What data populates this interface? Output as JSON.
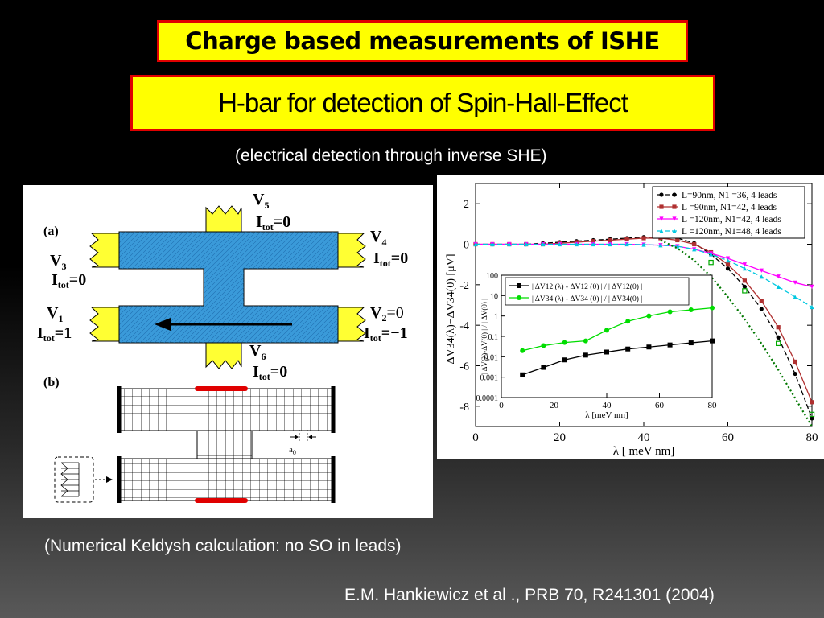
{
  "header": {
    "title": "Charge based measurements of ISHE",
    "subtitle": "H-bar for detection of Spin-Hall-Effect"
  },
  "caption_top": "(electrical detection through inverse SHE)",
  "caption_bottom": "(Numerical Keldysh calculation: no SO in leads)",
  "citation": "E.M. Hankiewicz et al ., PRB 70, R241301 (2004)",
  "figure_a": {
    "label": "(a)",
    "leads": {
      "v5": {
        "v": "V",
        "sub": "5",
        "i": "I",
        "isub": "tot",
        "val": "=0"
      },
      "v4": {
        "v": "V",
        "sub": "4",
        "i": "I",
        "isub": "tot",
        "val": "=0"
      },
      "v3": {
        "v": "V",
        "sub": "3",
        "i": "I",
        "isub": "tot",
        "val": "=0"
      },
      "v1": {
        "v": "V",
        "sub": "1",
        "i": "I",
        "isub": "tot",
        "val": "=1"
      },
      "v2": {
        "v": "V",
        "sub": "2",
        "vval": "=0",
        "i": "I",
        "isub": "tot",
        "val": "=−1"
      },
      "v6": {
        "v": "V",
        "sub": "6",
        "i": "I",
        "isub": "tot",
        "val": "=0"
      }
    }
  },
  "figure_b": {
    "label": "(b)",
    "spacing_label": "a",
    "spacing_sub": "0"
  },
  "colors": {
    "title_bg": "#ffff00",
    "title_border": "#e00000",
    "device_blue": "#3a9ad9",
    "lead_yellow": "#ffff33"
  },
  "chart_data": [
    {
      "type": "line",
      "xlabel": "λ [ meV nm]",
      "ylabel": "ΔV34(λ)−ΔV34(0)  [μV]",
      "xlim": [
        0,
        80
      ],
      "ylim": [
        -9,
        3
      ],
      "xticks": [
        0,
        20,
        40,
        60,
        80
      ],
      "yticks": [
        2,
        0,
        -2,
        -4,
        -6,
        -8
      ],
      "legend_position": "top-right",
      "series": [
        {
          "name": "L=90nm, N1 =36, 4 leads",
          "color": "#000000",
          "marker": "circle",
          "dash": "6,3",
          "x": [
            0,
            4,
            8,
            12,
            16,
            20,
            24,
            28,
            32,
            36,
            40,
            44,
            48,
            52,
            56,
            60,
            64,
            68,
            72,
            76,
            80
          ],
          "y": [
            0,
            0,
            0,
            0,
            0.05,
            0.1,
            0.15,
            0.2,
            0.25,
            0.3,
            0.35,
            0.35,
            0.3,
            0.05,
            -0.5,
            -1.2,
            -2.1,
            -3.2,
            -4.6,
            -6.4,
            -8.6
          ]
        },
        {
          "name": "L =90nm, N1=42, 4 leads",
          "color": "#b03030",
          "marker": "square",
          "dash": "",
          "x": [
            0,
            4,
            8,
            12,
            16,
            20,
            24,
            28,
            32,
            36,
            40,
            44,
            48,
            52,
            56,
            60,
            64,
            68,
            72,
            76,
            80
          ],
          "y": [
            0,
            0,
            0,
            0,
            0,
            0.05,
            0.1,
            0.15,
            0.2,
            0.25,
            0.3,
            0.3,
            0.2,
            0,
            -0.4,
            -1.0,
            -1.8,
            -2.8,
            -4.1,
            -5.8,
            -7.8
          ]
        },
        {
          "name": "L =120nm, N1=42, 4 leads",
          "color": "#ff00ff",
          "marker": "triangle-down",
          "dash": "",
          "x": [
            0,
            4,
            8,
            12,
            16,
            20,
            24,
            28,
            32,
            36,
            40,
            44,
            48,
            52,
            56,
            60,
            64,
            68,
            72,
            76,
            80
          ],
          "y": [
            0,
            0,
            0,
            0,
            0,
            0,
            0,
            0,
            0,
            0,
            -0.02,
            -0.05,
            -0.1,
            -0.25,
            -0.45,
            -0.7,
            -1.0,
            -1.3,
            -1.6,
            -1.9,
            -2.1
          ]
        },
        {
          "name": "L =120nm, N1=48, 4 leads",
          "color": "#00c8e0",
          "marker": "triangle-up",
          "dash": "6,3",
          "x": [
            0,
            4,
            8,
            12,
            16,
            20,
            24,
            28,
            32,
            36,
            40,
            44,
            48,
            52,
            56,
            60,
            64,
            68,
            72,
            76,
            80
          ],
          "y": [
            0,
            0,
            0,
            0,
            0,
            0,
            0,
            0,
            0,
            0,
            -0.02,
            -0.05,
            -0.1,
            -0.25,
            -0.5,
            -0.8,
            -1.2,
            -1.6,
            -2.1,
            -2.6,
            -3.1
          ]
        },
        {
          "name": "",
          "color": "#007700",
          "marker": "none",
          "dash": "2,3",
          "x": [
            44,
            48,
            52,
            56,
            60,
            64,
            68,
            72,
            76,
            80
          ],
          "y": [
            0.2,
            -0.2,
            -0.8,
            -1.6,
            -2.6,
            -3.7,
            -4.9,
            -6.2,
            -7.6,
            -9.0
          ]
        },
        {
          "name": "",
          "color": "#00aa00",
          "marker": "square-open",
          "dash": "",
          "x": [
            56,
            64,
            72,
            80
          ],
          "y": [
            -0.9,
            -2.3,
            -4.9,
            -8.4
          ]
        }
      ]
    },
    {
      "type": "line",
      "xlabel": "λ [meV nm]",
      "ylabel": "| ΔV(λ)-ΔV(0) | / | ΔV(0) |",
      "xlim": [
        0,
        80
      ],
      "ylim": [
        0.0001,
        100
      ],
      "yscale": "log",
      "xticks": [
        0,
        20,
        40,
        60,
        80
      ],
      "yticks": [
        100,
        10,
        1,
        0.1,
        0.01,
        0.001,
        0.0001
      ],
      "ytick_labels": [
        "100",
        "10",
        "1",
        "0.1",
        "0.01",
        "0.001",
        "0.0001"
      ],
      "legend_position": "top-left",
      "series": [
        {
          "name": "| ΔV12 (λ) - ΔV12 (0) | / | ΔV12(0) |",
          "color": "#000000",
          "marker": "square",
          "x": [
            8,
            16,
            24,
            32,
            40,
            48,
            56,
            64,
            72,
            80
          ],
          "y": [
            0.0013,
            0.003,
            0.007,
            0.012,
            0.017,
            0.024,
            0.03,
            0.038,
            0.048,
            0.06
          ]
        },
        {
          "name": "| ΔV34 (λ) - ΔV34 (0) | / | ΔV34(0) |",
          "color": "#00dd00",
          "marker": "circle",
          "x": [
            8,
            16,
            24,
            32,
            40,
            48,
            56,
            64,
            72,
            80
          ],
          "y": [
            0.02,
            0.035,
            0.05,
            0.06,
            0.2,
            0.55,
            1.0,
            1.6,
            2.0,
            2.5
          ]
        }
      ]
    }
  ]
}
